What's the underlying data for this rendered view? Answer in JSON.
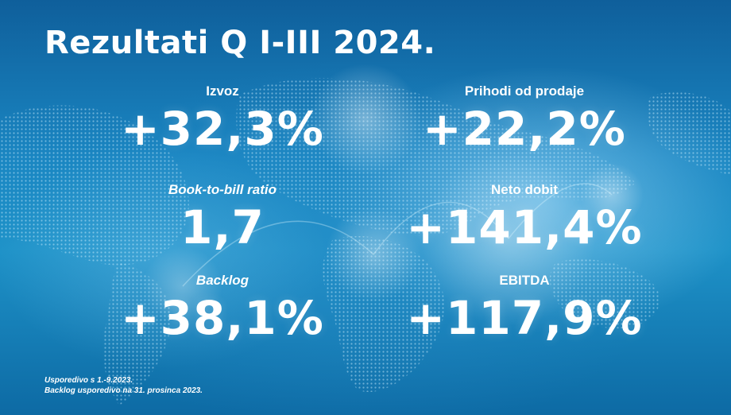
{
  "title": "Rezultati Q I-III 2024.",
  "metrics": [
    {
      "label": "Izvoz",
      "value": "+32,3%"
    },
    {
      "label": "Prihodi od prodaje",
      "value": "+22,2%"
    },
    {
      "label": "Book-to-bill ratio",
      "value": "1,7"
    },
    {
      "label": "Neto dobit",
      "value": "+141,4%"
    },
    {
      "label": "Backlog",
      "value": "+38,1%"
    },
    {
      "label": "EBITDA",
      "value": "+117,9%"
    }
  ],
  "footnotes": [
    "Usporedivo s 1.-9.2023.",
    "Backlog usporedivo na 31. prosinca 2023."
  ],
  "colors": {
    "background_dark": "#0f5f9b",
    "background_light": "#1e92c8",
    "text": "#ffffff"
  }
}
